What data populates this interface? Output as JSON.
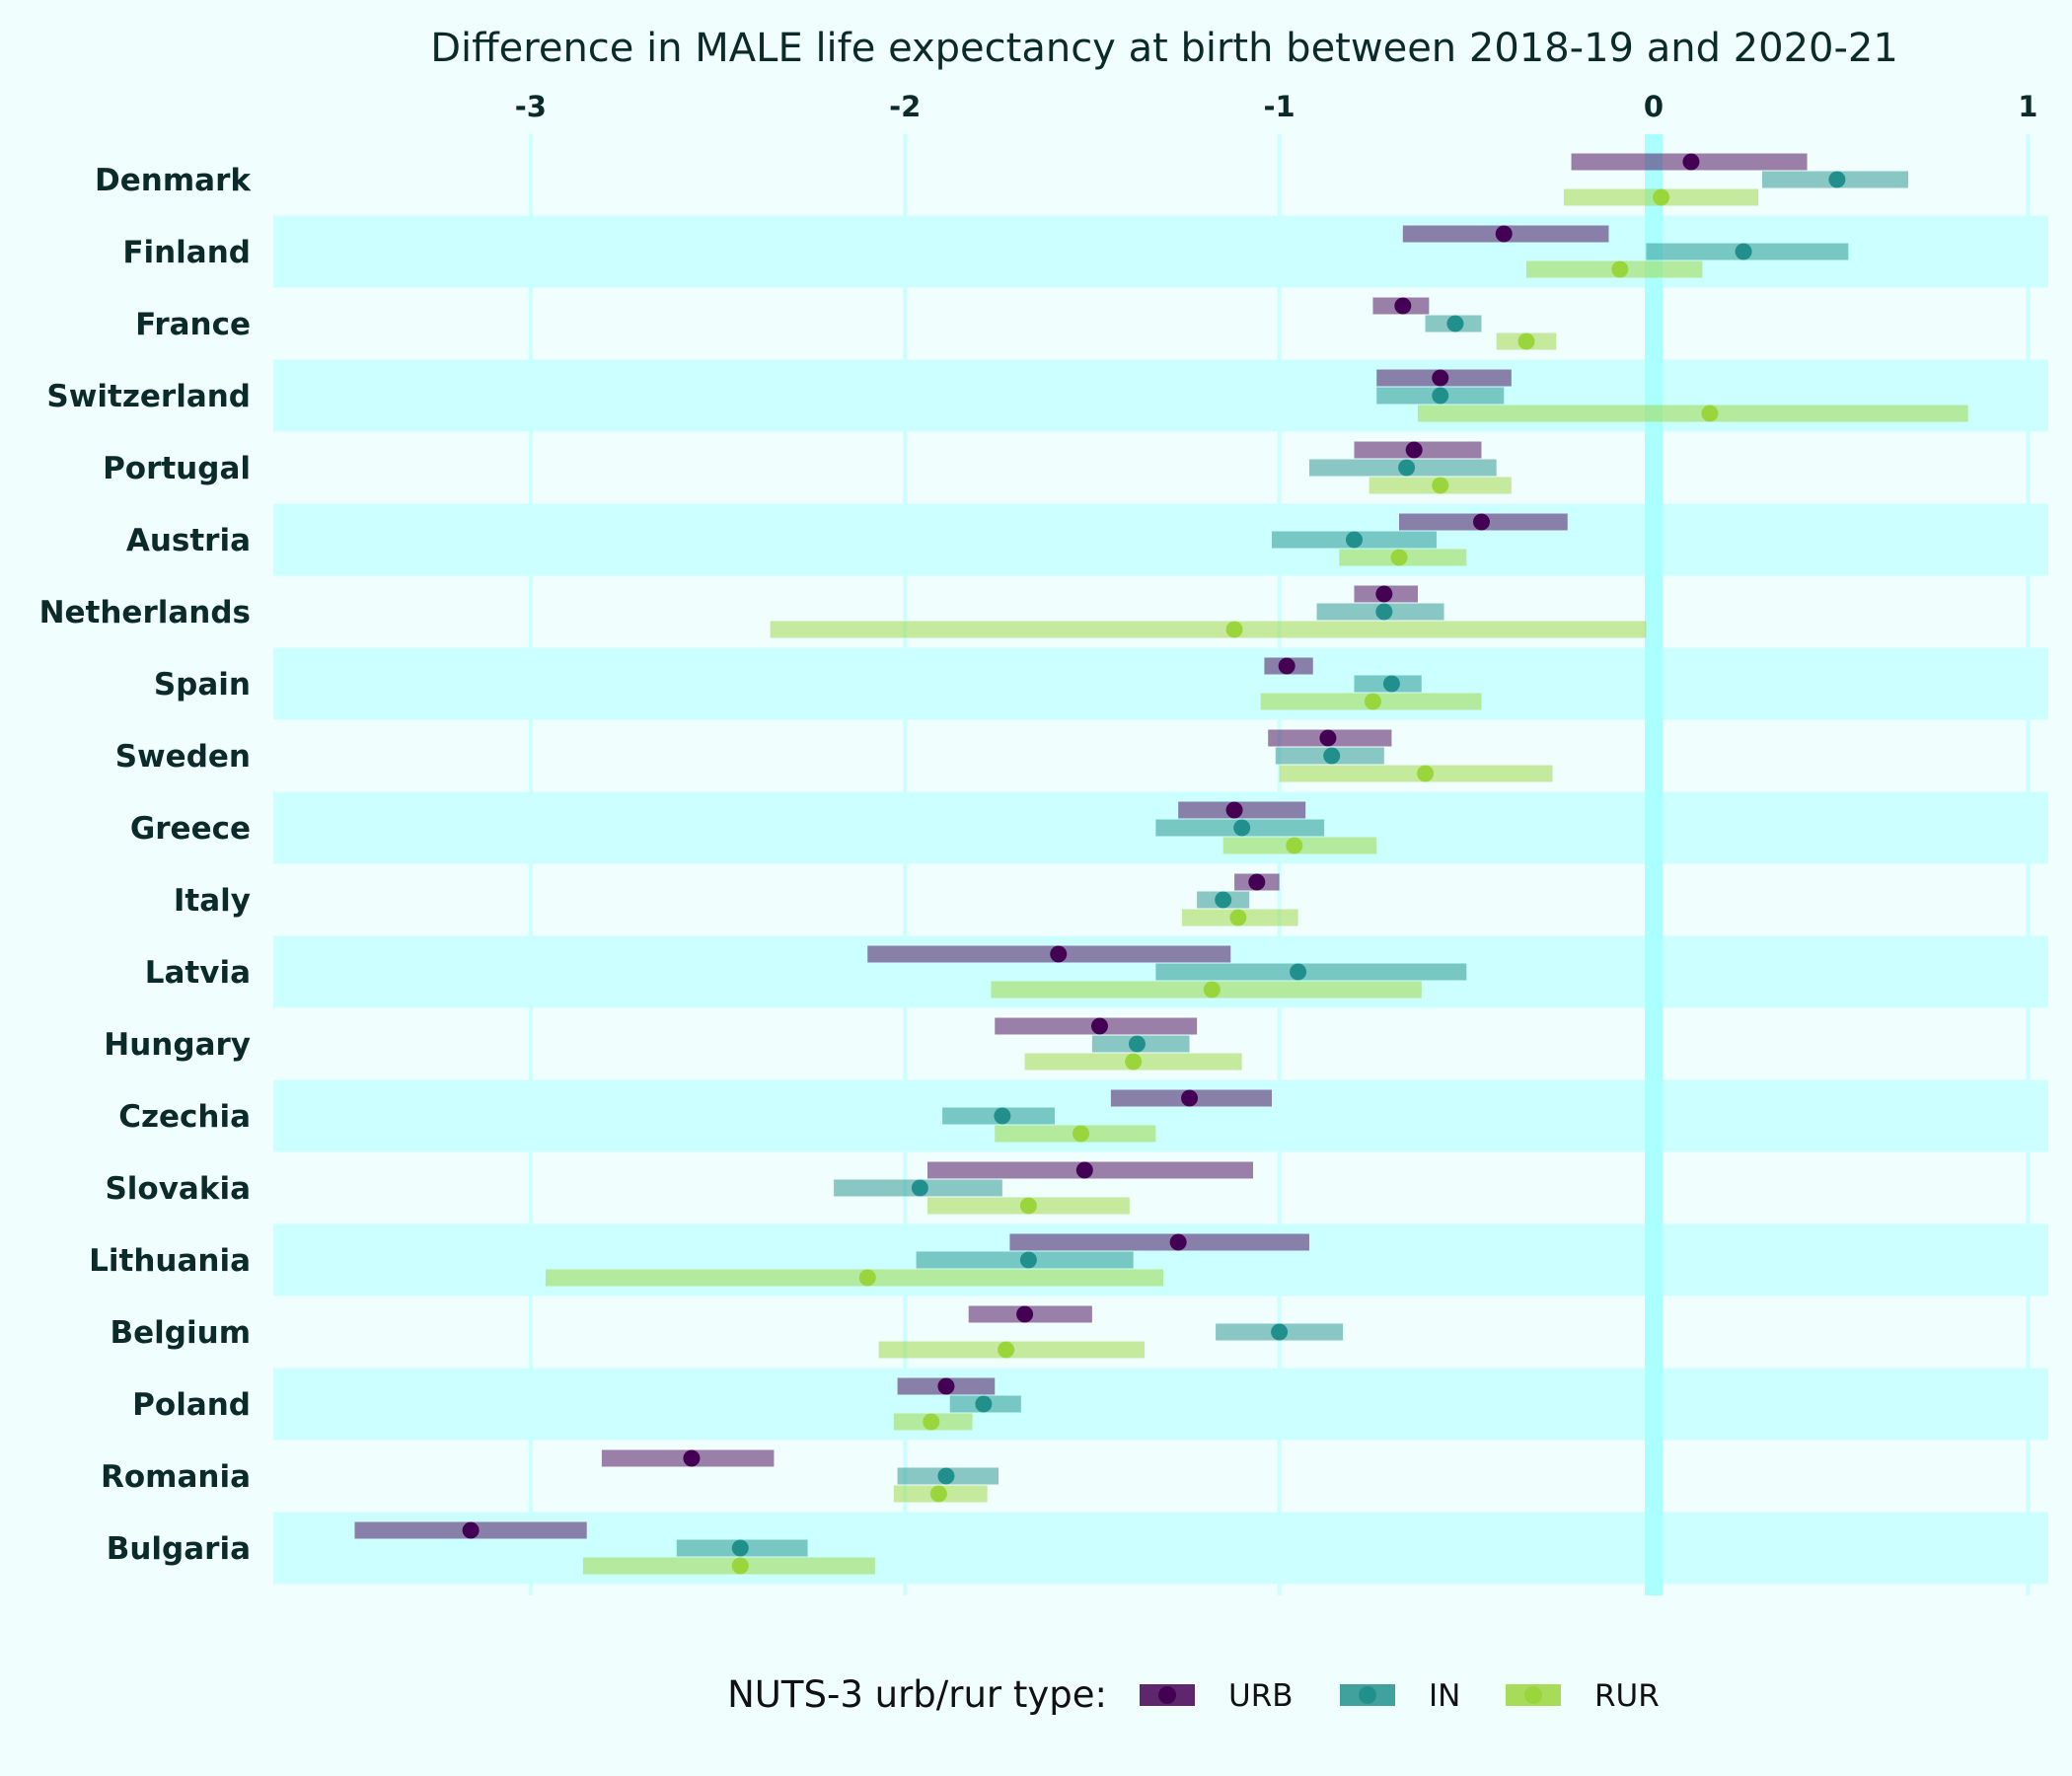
{
  "chart_data": {
    "type": "range-dot",
    "title": "Difference in MALE life expectancy at birth between 2018-19 and 2020-21",
    "xlim": [
      -3.7,
      1.05
    ],
    "xticks": [
      -3,
      -2,
      -1,
      0,
      1
    ],
    "tick_labels": [
      "-3",
      "-2",
      "-1",
      "0",
      "1"
    ],
    "grid": true,
    "reference_line": 0,
    "legend": {
      "title": "NUTS-3 urb/rur type:",
      "position": "bottom",
      "entries": [
        "URB",
        "IN",
        "RUR"
      ]
    },
    "colors": {
      "background": "#f0fffe",
      "band": "#ccffff",
      "grid": "#ccffff",
      "zero_line": "#aaffff",
      "URB": "#440154",
      "IN": "#21908c",
      "RUR": "#9ad53c"
    },
    "series_names": [
      "URB",
      "IN",
      "RUR"
    ],
    "countries": [
      {
        "name": "Denmark",
        "URB": [
          -0.22,
          0.1,
          0.41
        ],
        "IN": [
          0.29,
          0.49,
          0.68
        ],
        "RUR": [
          -0.24,
          0.02,
          0.28
        ]
      },
      {
        "name": "Finland",
        "URB": [
          -0.67,
          -0.4,
          -0.12
        ],
        "IN": [
          -0.02,
          0.24,
          0.52
        ],
        "RUR": [
          -0.34,
          -0.09,
          0.13
        ]
      },
      {
        "name": "France",
        "URB": [
          -0.75,
          -0.67,
          -0.6
        ],
        "IN": [
          -0.61,
          -0.53,
          -0.46
        ],
        "RUR": [
          -0.42,
          -0.34,
          -0.26
        ]
      },
      {
        "name": "Switzerland",
        "URB": [
          -0.74,
          -0.57,
          -0.38
        ],
        "IN": [
          -0.74,
          -0.57,
          -0.4
        ],
        "RUR": [
          -0.63,
          0.15,
          0.84
        ]
      },
      {
        "name": "Portugal",
        "URB": [
          -0.8,
          -0.64,
          -0.46
        ],
        "IN": [
          -0.92,
          -0.66,
          -0.42
        ],
        "RUR": [
          -0.76,
          -0.57,
          -0.38
        ]
      },
      {
        "name": "Austria",
        "URB": [
          -0.68,
          -0.46,
          -0.23
        ],
        "IN": [
          -1.02,
          -0.8,
          -0.58
        ],
        "RUR": [
          -0.84,
          -0.68,
          -0.5
        ]
      },
      {
        "name": "Netherlands",
        "URB": [
          -0.8,
          -0.72,
          -0.63
        ],
        "IN": [
          -0.9,
          -0.72,
          -0.56
        ],
        "RUR": [
          -2.36,
          -1.12,
          -0.02
        ]
      },
      {
        "name": "Spain",
        "URB": [
          -1.04,
          -0.98,
          -0.91
        ],
        "IN": [
          -0.8,
          -0.7,
          -0.62
        ],
        "RUR": [
          -1.05,
          -0.75,
          -0.46
        ]
      },
      {
        "name": "Sweden",
        "URB": [
          -1.03,
          -0.87,
          -0.7
        ],
        "IN": [
          -1.01,
          -0.86,
          -0.72
        ],
        "RUR": [
          -1.0,
          -0.61,
          -0.27
        ]
      },
      {
        "name": "Greece",
        "URB": [
          -1.27,
          -1.12,
          -0.93
        ],
        "IN": [
          -1.33,
          -1.1,
          -0.88
        ],
        "RUR": [
          -1.15,
          -0.96,
          -0.74
        ]
      },
      {
        "name": "Italy",
        "URB": [
          -1.12,
          -1.06,
          -1.0
        ],
        "IN": [
          -1.22,
          -1.15,
          -1.08
        ],
        "RUR": [
          -1.26,
          -1.11,
          -0.95
        ]
      },
      {
        "name": "Latvia",
        "URB": [
          -2.1,
          -1.59,
          -1.13
        ],
        "IN": [
          -1.33,
          -0.95,
          -0.5
        ],
        "RUR": [
          -1.77,
          -1.18,
          -0.62
        ]
      },
      {
        "name": "Hungary",
        "URB": [
          -1.76,
          -1.48,
          -1.22
        ],
        "IN": [
          -1.5,
          -1.38,
          -1.24
        ],
        "RUR": [
          -1.68,
          -1.39,
          -1.1
        ]
      },
      {
        "name": "Czechia",
        "URB": [
          -1.45,
          -1.24,
          -1.02
        ],
        "IN": [
          -1.9,
          -1.74,
          -1.6
        ],
        "RUR": [
          -1.76,
          -1.53,
          -1.33
        ]
      },
      {
        "name": "Slovakia",
        "URB": [
          -1.94,
          -1.52,
          -1.07
        ],
        "IN": [
          -2.19,
          -1.96,
          -1.74
        ],
        "RUR": [
          -1.94,
          -1.67,
          -1.4
        ]
      },
      {
        "name": "Lithuania",
        "URB": [
          -1.72,
          -1.27,
          -0.92
        ],
        "IN": [
          -1.97,
          -1.67,
          -1.39
        ],
        "RUR": [
          -2.96,
          -2.1,
          -1.31
        ]
      },
      {
        "name": "Belgium",
        "URB": [
          -1.83,
          -1.68,
          -1.5
        ],
        "IN": [
          -1.17,
          -1.0,
          -0.83
        ],
        "RUR": [
          -2.07,
          -1.73,
          -1.36
        ]
      },
      {
        "name": "Poland",
        "URB": [
          -2.02,
          -1.89,
          -1.76
        ],
        "IN": [
          -1.88,
          -1.79,
          -1.69
        ],
        "RUR": [
          -2.03,
          -1.93,
          -1.82
        ]
      },
      {
        "name": "Romania",
        "URB": [
          -2.81,
          -2.57,
          -2.35
        ],
        "IN": [
          -2.02,
          -1.89,
          -1.75
        ],
        "RUR": [
          -2.03,
          -1.91,
          -1.78
        ]
      },
      {
        "name": "Bulgaria",
        "URB": [
          -3.47,
          -3.16,
          -2.85
        ],
        "IN": [
          -2.61,
          -2.44,
          -2.26
        ],
        "RUR": [
          -2.86,
          -2.44,
          -2.08
        ]
      }
    ]
  }
}
